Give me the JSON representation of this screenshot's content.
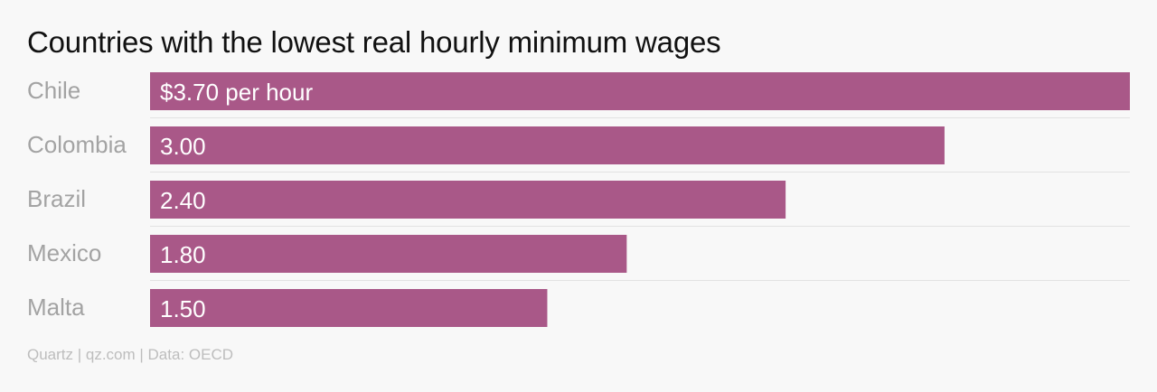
{
  "title": "Countries with the lowest real hourly minimum wages",
  "source": "Quartz | qz.com | Data: OECD",
  "colors": {
    "bar": "#a95888",
    "separator": "#e2e2e2"
  },
  "chart_data": {
    "type": "bar",
    "orientation": "horizontal",
    "title": "Countries with the lowest real hourly minimum wages",
    "categories": [
      "Chile",
      "Colombia",
      "Brazil",
      "Mexico",
      "Malta"
    ],
    "values": [
      3.7,
      3.0,
      2.4,
      1.8,
      1.5
    ],
    "value_labels": [
      "$3.70 per hour",
      "3.00",
      "2.40",
      "1.80",
      "1.50"
    ],
    "xlim": [
      0,
      3.7
    ],
    "grid": false,
    "legend": "none"
  }
}
